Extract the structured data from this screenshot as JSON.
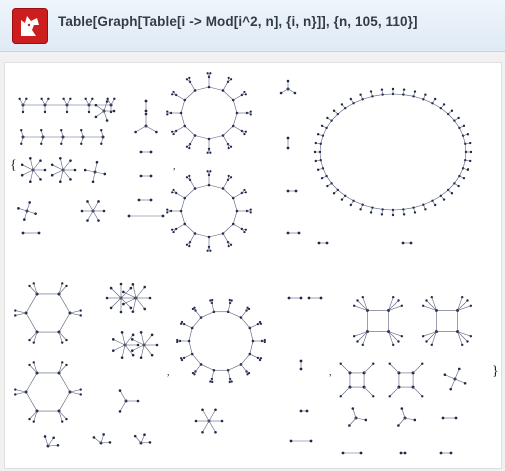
{
  "app": {
    "logo_icon": "wolfram-alpha-wolf-icon",
    "logo_color": "#cc1e1e",
    "query": "Table[Graph[Table[i -> Mod[i^2, n], {i, n}]], {n, 105, 110}]"
  },
  "result": {
    "description_items": 6,
    "separator": ",",
    "brace": "}"
  }
}
